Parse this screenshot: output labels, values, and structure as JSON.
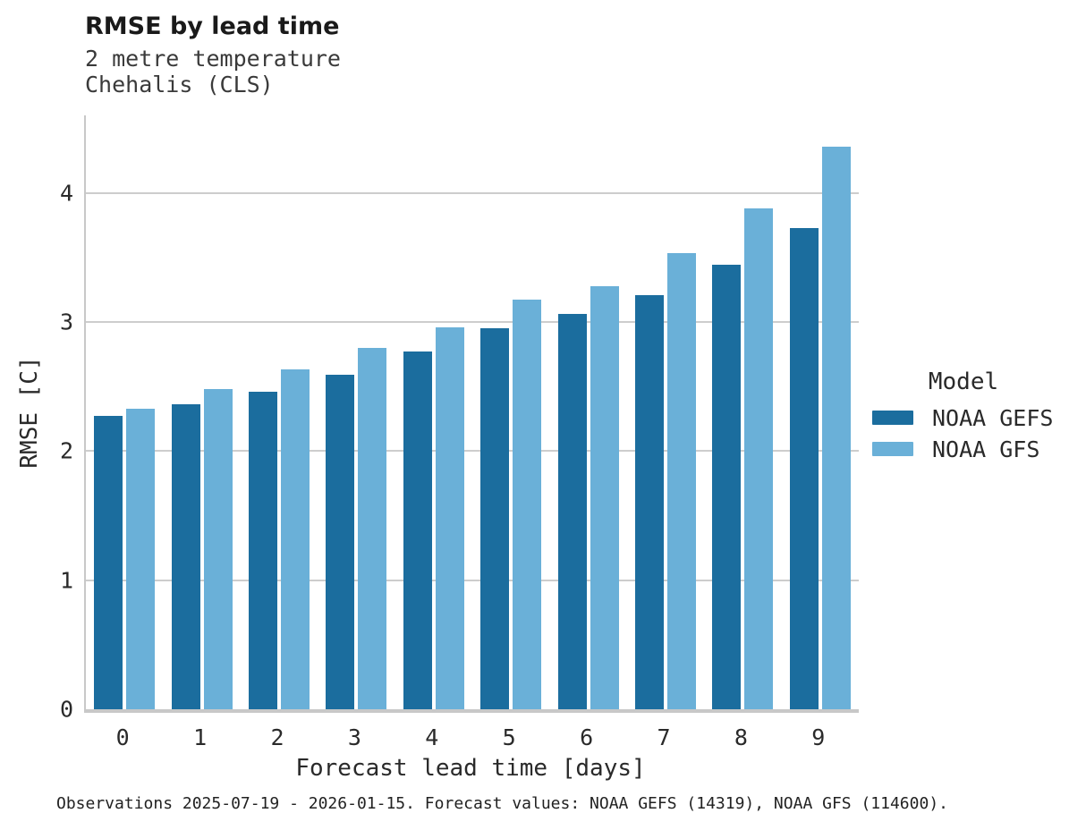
{
  "chart_data": {
    "type": "bar",
    "title": "RMSE by lead time",
    "subtitle": [
      "2 metre temperature",
      "Chehalis (CLS)"
    ],
    "categories": [
      "0",
      "1",
      "2",
      "3",
      "4",
      "5",
      "6",
      "7",
      "8",
      "9"
    ],
    "series": [
      {
        "name": "NOAA GEFS",
        "color": "#1b6d9e",
        "values": [
          2.27,
          2.36,
          2.46,
          2.59,
          2.77,
          2.95,
          3.06,
          3.21,
          3.44,
          3.73
        ]
      },
      {
        "name": "NOAA GFS",
        "color": "#6ab0d8",
        "values": [
          2.33,
          2.48,
          2.63,
          2.8,
          2.96,
          3.17,
          3.28,
          3.53,
          3.88,
          4.36
        ]
      }
    ],
    "xlabel": "Forecast lead time [days]",
    "ylabel": "RMSE [C]",
    "ylim": [
      0,
      4.6
    ],
    "yticks": [
      0,
      1,
      2,
      3,
      4
    ],
    "grid": true,
    "legend_title": "Model",
    "legend_position": "right",
    "colors": {
      "grid": "#cdcdcd",
      "axis": "#c8c8c8"
    }
  },
  "footer": {
    "note": "Observations 2025-07-19 - 2026-01-15. Forecast values: NOAA GEFS (14319), NOAA GFS (114600)."
  }
}
